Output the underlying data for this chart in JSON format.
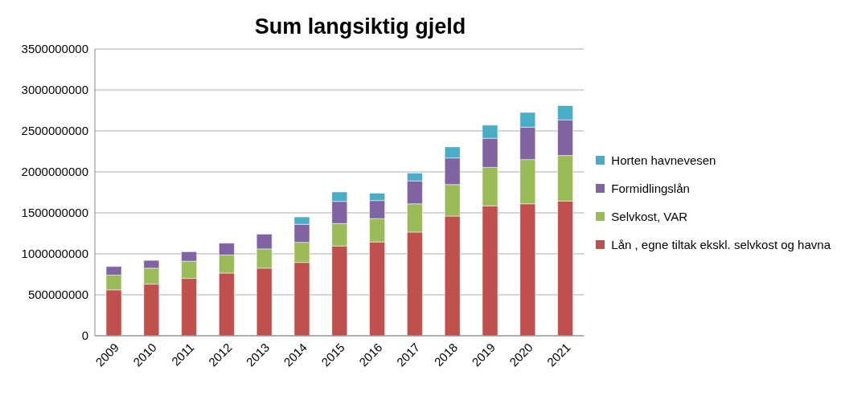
{
  "chart_data": {
    "type": "bar",
    "title": "Sum langsiktig gjeld",
    "stacked": true,
    "grid": "y",
    "legend": "right",
    "categories": [
      "2009",
      "2010",
      "2011",
      "2012",
      "2013",
      "2014",
      "2015",
      "2016",
      "2017",
      "2018",
      "2019",
      "2020",
      "2021"
    ],
    "ylim": [
      0,
      3500000000
    ],
    "yticks": [
      0,
      500000000,
      1000000000,
      1500000000,
      2000000000,
      2500000000,
      3000000000,
      3500000000
    ],
    "series": [
      {
        "name": "Lån , egne tiltak ekskl. selvkost og havna",
        "color": "#c0504d",
        "values": [
          560000000,
          630000000,
          700000000,
          765000000,
          825000000,
          895000000,
          1095000000,
          1145000000,
          1265000000,
          1460000000,
          1585000000,
          1610000000,
          1645000000
        ]
      },
      {
        "name": "Selvkost, VAR",
        "color": "#9bbb59",
        "values": [
          180000000,
          195000000,
          210000000,
          220000000,
          235000000,
          245000000,
          275000000,
          285000000,
          345000000,
          385000000,
          470000000,
          540000000,
          555000000
        ]
      },
      {
        "name": "Formidlingslån",
        "color": "#8064a2",
        "values": [
          105000000,
          95000000,
          115000000,
          145000000,
          180000000,
          220000000,
          270000000,
          220000000,
          280000000,
          325000000,
          355000000,
          395000000,
          435000000
        ]
      },
      {
        "name": "Horten havnevesen",
        "color": "#4bacc6",
        "values": [
          null,
          null,
          null,
          null,
          null,
          90000000,
          115000000,
          90000000,
          95000000,
          135000000,
          160000000,
          180000000,
          175000000
        ]
      }
    ]
  }
}
